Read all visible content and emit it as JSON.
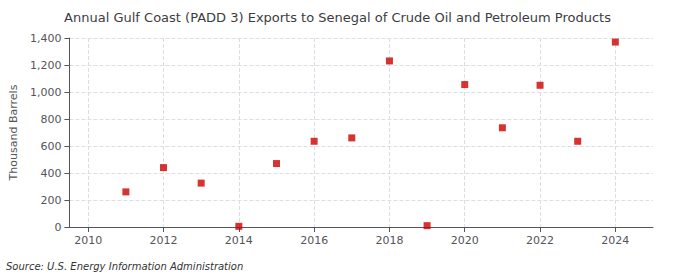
{
  "chart_data": {
    "type": "scatter",
    "title": "Annual Gulf Coast (PADD 3) Exports to Senegal of Crude Oil and Petroleum Products",
    "ylabel": "Thousand Barrels",
    "source": "Source: U.S. Energy Information Administration",
    "x": [
      2011,
      2012,
      2013,
      2014,
      2015,
      2016,
      2017,
      2018,
      2019,
      2020,
      2021,
      2022,
      2023,
      2024
    ],
    "values": [
      260,
      440,
      325,
      5,
      470,
      635,
      660,
      1230,
      10,
      1055,
      735,
      1050,
      635,
      1370
    ],
    "color": "#cc0000",
    "marker": "square",
    "xlim": [
      2009.5,
      2025.0
    ],
    "xticks": [
      2010,
      2012,
      2014,
      2016,
      2018,
      2020,
      2022,
      2024
    ],
    "ylim": [
      0,
      1400
    ],
    "yticks": [
      0,
      200,
      400,
      600,
      800,
      {
        "value": 1000,
        "label": "1,000"
      },
      {
        "value": 1200,
        "label": "1,200"
      },
      {
        "value": 1400,
        "label": "1,400"
      }
    ],
    "grid": true
  }
}
